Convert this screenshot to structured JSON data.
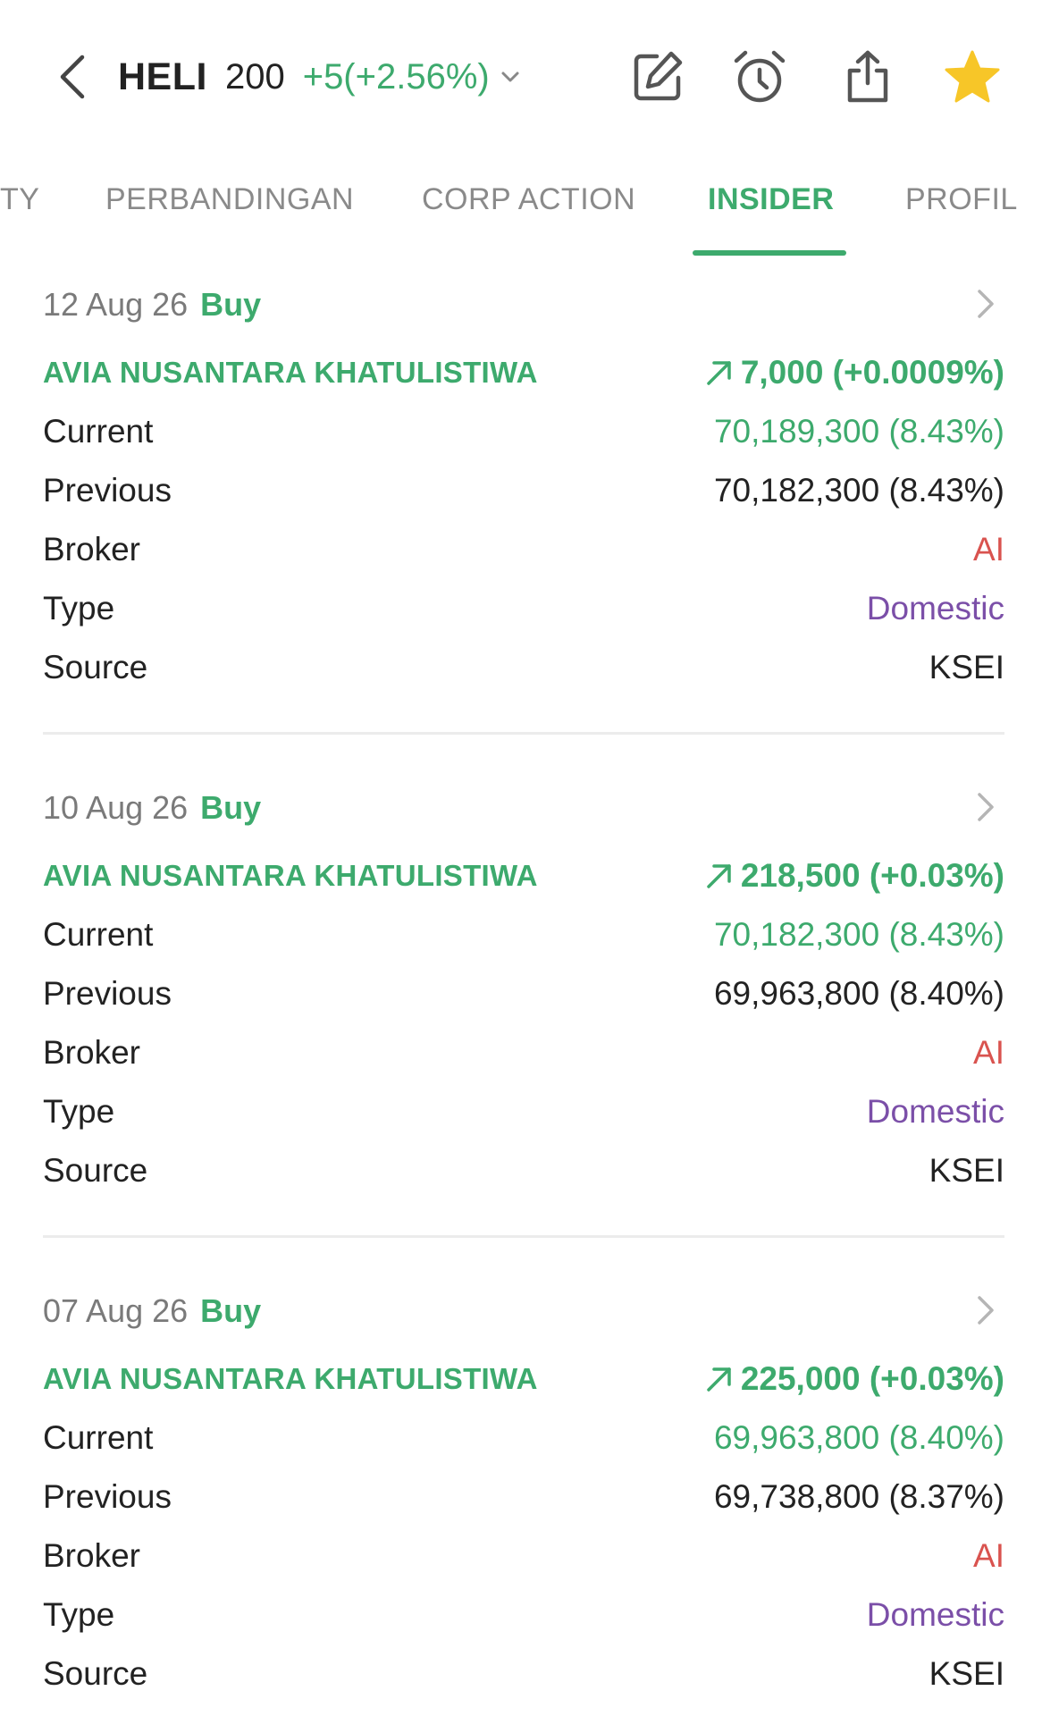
{
  "header": {
    "ticker": "HELI",
    "price": "200",
    "change": "+5(+2.56%)",
    "icons": [
      "back-icon",
      "chevron-down-icon",
      "edit-icon",
      "alarm-icon",
      "share-icon",
      "star-icon"
    ]
  },
  "tabs": [
    {
      "label": "TY"
    },
    {
      "label": "PERBANDINGAN"
    },
    {
      "label": "CORP ACTION"
    },
    {
      "label": "INSIDER",
      "active": true
    },
    {
      "label": "PROFIL"
    }
  ],
  "labels": {
    "current": "Current",
    "previous": "Previous",
    "broker": "Broker",
    "type": "Type",
    "source": "Source"
  },
  "entries": [
    {
      "date": "12 Aug 26",
      "action": "Buy",
      "holder": "AVIA NUSANTARA KHATULISTIWA",
      "change": "7,000 (+0.0009%)",
      "current": "70,189,300 (8.43%)",
      "previous": "70,182,300 (8.43%)",
      "broker": "AI",
      "type": "Domestic",
      "source": "KSEI"
    },
    {
      "date": "10 Aug 26",
      "action": "Buy",
      "holder": "AVIA NUSANTARA KHATULISTIWA",
      "change": "218,500 (+0.03%)",
      "current": "70,182,300 (8.43%)",
      "previous": "69,963,800 (8.40%)",
      "broker": "AI",
      "type": "Domestic",
      "source": "KSEI"
    },
    {
      "date": "07 Aug 26",
      "action": "Buy",
      "holder": "AVIA NUSANTARA KHATULISTIWA",
      "change": "225,000 (+0.03%)",
      "current": "69,963,800 (8.40%)",
      "previous": "69,738,800 (8.37%)",
      "broker": "AI",
      "type": "Domestic",
      "source": "KSEI"
    }
  ],
  "colors": {
    "accent_green": "#3daa6d",
    "broker_red": "#d9534f",
    "type_purple": "#7b4fa8",
    "star_yellow": "#f7c628"
  }
}
